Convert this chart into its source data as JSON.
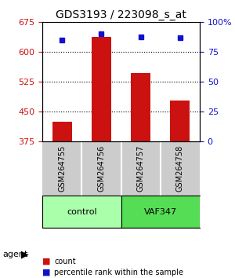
{
  "title": "GDS3193 / 223098_s_at",
  "samples": [
    "GSM264755",
    "GSM264756",
    "GSM264757",
    "GSM264758"
  ],
  "counts": [
    425,
    638,
    548,
    478
  ],
  "percentile_ranks": [
    85,
    90,
    88,
    87
  ],
  "ylim_left": [
    375,
    675
  ],
  "ylim_right": [
    0,
    100
  ],
  "yticks_left": [
    375,
    450,
    525,
    600,
    675
  ],
  "yticks_right": [
    0,
    25,
    50,
    75,
    100
  ],
  "bar_color": "#cc1111",
  "dot_color": "#1111cc",
  "bar_width": 0.5,
  "groups": [
    {
      "label": "control",
      "samples": [
        0,
        1
      ],
      "color": "#aaffaa"
    },
    {
      "label": "VAF347",
      "samples": [
        2,
        3
      ],
      "color": "#55dd55"
    }
  ],
  "group_label_prefix": "agent",
  "legend_count_label": "count",
  "legend_percentile_label": "percentile rank within the sample",
  "background_color": "#ffffff",
  "plot_bg_color": "#ffffff",
  "grid_color": "#000000",
  "left_tick_color": "#cc1111",
  "right_tick_color": "#1111cc"
}
